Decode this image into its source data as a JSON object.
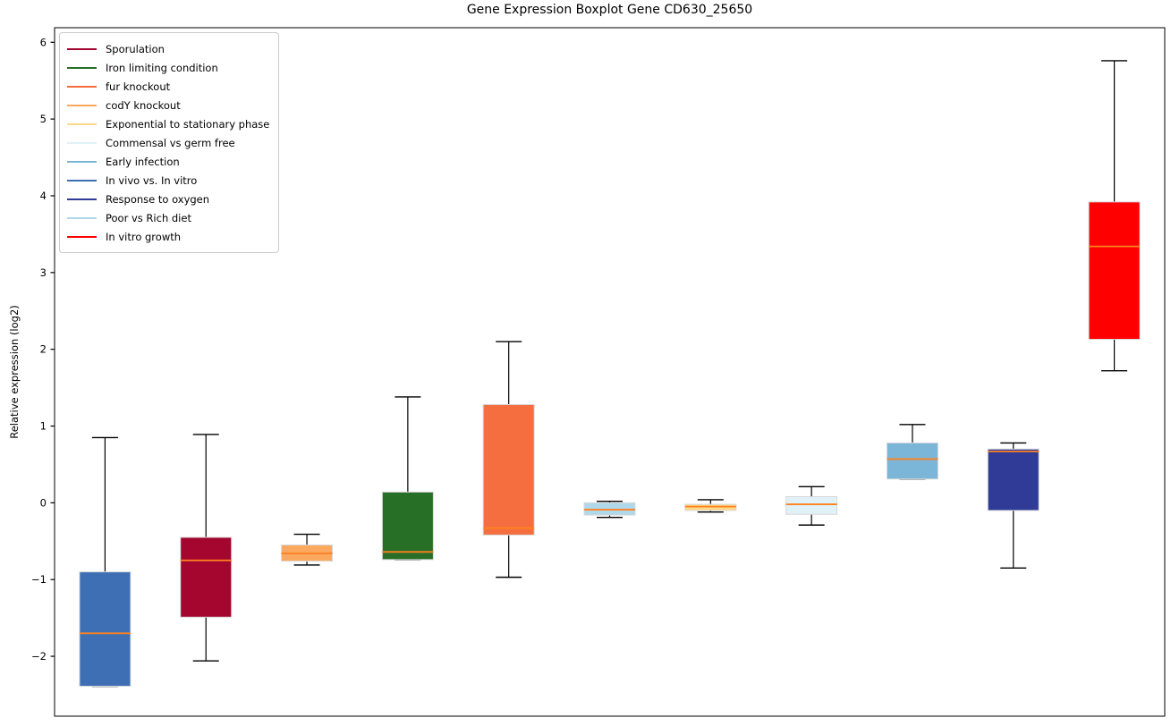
{
  "chart_data": {
    "type": "boxplot",
    "title": "Gene Expression Boxplot Gene CD630_25650",
    "xlabel": "",
    "ylabel": "Relative expression (log2)",
    "ylim": [
      -2.78,
      6.19
    ],
    "yticks": [
      -2,
      -1,
      0,
      1,
      2,
      3,
      4,
      5,
      6
    ],
    "grid": false,
    "legend_position": "upper-left",
    "median_color": "#FF8220",
    "whisker_color": "#000000",
    "box_edge_color": "#d8d8d8",
    "legend": [
      {
        "label": "Sporulation",
        "color": "#A5062F"
      },
      {
        "label": "Iron limiting condition",
        "color": "#276E27"
      },
      {
        "label": "fur knockout",
        "color": "#F56E3F"
      },
      {
        "label": "codY knockout",
        "color": "#FCA85F"
      },
      {
        "label": "Exponential to stationary phase",
        "color": "#FDD98A"
      },
      {
        "label": "Commensal vs germ free",
        "color": "#E0F1F8"
      },
      {
        "label": "Early infection",
        "color": "#7BB5D8"
      },
      {
        "label": "In vivo vs. In vitro",
        "color": "#3E6FB4"
      },
      {
        "label": "Response to oxygen",
        "color": "#2F3B96"
      },
      {
        "label": "Poor vs Rich diet",
        "color": "#AFD8EA"
      },
      {
        "label": "In vitro growth",
        "color": "#FF0000"
      }
    ],
    "series": [
      {
        "name": "In vivo vs. In vitro",
        "color": "#3E6FB4",
        "whisker_low": -2.39,
        "q1": -2.39,
        "median": -1.7,
        "q3": -0.9,
        "whisker_high": 0.85
      },
      {
        "name": "Sporulation",
        "color": "#A5062F",
        "whisker_low": -2.06,
        "q1": -1.49,
        "median": -0.75,
        "q3": -0.45,
        "whisker_high": 0.89
      },
      {
        "name": "codY knockout",
        "color": "#FCA85F",
        "whisker_low": -0.81,
        "q1": -0.76,
        "median": -0.66,
        "q3": -0.55,
        "whisker_high": -0.41
      },
      {
        "name": "Iron limiting condition",
        "color": "#276E27",
        "whisker_low": -0.74,
        "q1": -0.74,
        "median": -0.64,
        "q3": 0.14,
        "whisker_high": 1.38
      },
      {
        "name": "fur knockout",
        "color": "#F56E3F",
        "whisker_low": -0.97,
        "q1": -0.42,
        "median": -0.33,
        "q3": 1.28,
        "whisker_high": 2.1
      },
      {
        "name": "Poor vs Rich diet",
        "color": "#AFD8EA",
        "whisker_low": -0.19,
        "q1": -0.16,
        "median": -0.09,
        "q3": 0.0,
        "whisker_high": 0.02
      },
      {
        "name": "Exponential to stationary phase",
        "color": "#FDD98A",
        "whisker_low": -0.12,
        "q1": -0.1,
        "median": -0.05,
        "q3": -0.02,
        "whisker_high": 0.04
      },
      {
        "name": "Commensal vs germ free",
        "color": "#E0F1F8",
        "whisker_low": -0.29,
        "q1": -0.15,
        "median": -0.02,
        "q3": 0.08,
        "whisker_high": 0.21
      },
      {
        "name": "Early infection",
        "color": "#7BB5D8",
        "whisker_low": 0.31,
        "q1": 0.31,
        "median": 0.57,
        "q3": 0.78,
        "whisker_high": 1.02
      },
      {
        "name": "Response to oxygen",
        "color": "#2F3B96",
        "whisker_low": -0.85,
        "q1": -0.1,
        "median": 0.67,
        "q3": 0.7,
        "whisker_high": 0.78
      },
      {
        "name": "In vitro growth",
        "color": "#FF0000",
        "whisker_low": 1.72,
        "q1": 2.13,
        "median": 3.34,
        "q3": 3.92,
        "whisker_high": 5.76
      }
    ]
  }
}
